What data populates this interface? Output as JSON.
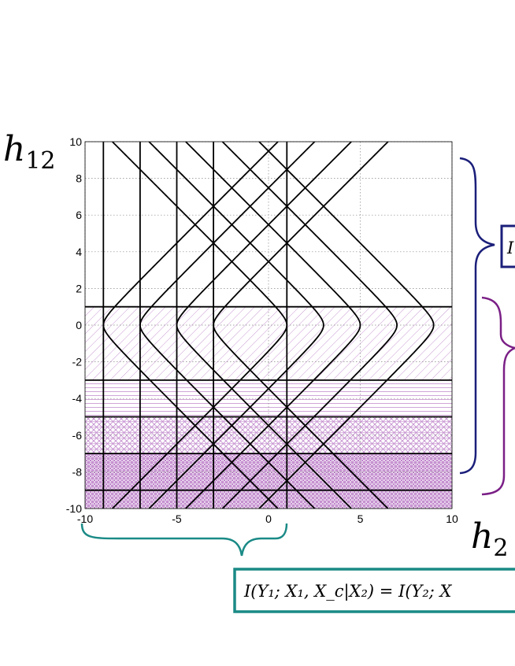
{
  "chart_data": {
    "type": "line",
    "xlim": [
      -10,
      10
    ],
    "ylim": [
      -10,
      10
    ],
    "x_ticks": [
      -10,
      -5,
      0,
      5,
      10
    ],
    "y_ticks": [
      -10,
      -8,
      -6,
      -4,
      -2,
      0,
      2,
      4,
      6,
      8,
      10
    ],
    "grid": true,
    "ylabel": "h12",
    "xlabel": "h2",
    "vertical_lines_x": [
      -9,
      -7,
      -5,
      -3,
      1
    ],
    "horizontal_lines_y": [
      1,
      -3,
      -5,
      -7,
      -9
    ],
    "left_branch_vertices_x": [
      -9,
      -7,
      -5,
      -3
    ],
    "right_branch_vertices_x": [
      1,
      3,
      5,
      7,
      9
    ],
    "hyperbola_center_y": 0,
    "shaded_bands": [
      {
        "y_from": -3,
        "y_to": 1,
        "pattern": "hatch-light"
      },
      {
        "y_from": -5,
        "y_to": -3,
        "pattern": "horizontal-light"
      },
      {
        "y_from": -7,
        "y_to": -5,
        "pattern": "crosshatch"
      },
      {
        "y_from": -9,
        "y_to": -7,
        "pattern": "grid-dense"
      },
      {
        "y_from": -10,
        "y_to": -9,
        "pattern": "grid-dense"
      }
    ],
    "colors": {
      "navy": "#1b1f7a",
      "purple": "#7a1f86",
      "teal": "#1a8a86",
      "hatch": "#c48fcf"
    }
  },
  "annotations": {
    "navy_box_text": "I",
    "bottom_formula": "I(Y₁; X₁, X_c|X₂) = I(Y₂; X"
  }
}
